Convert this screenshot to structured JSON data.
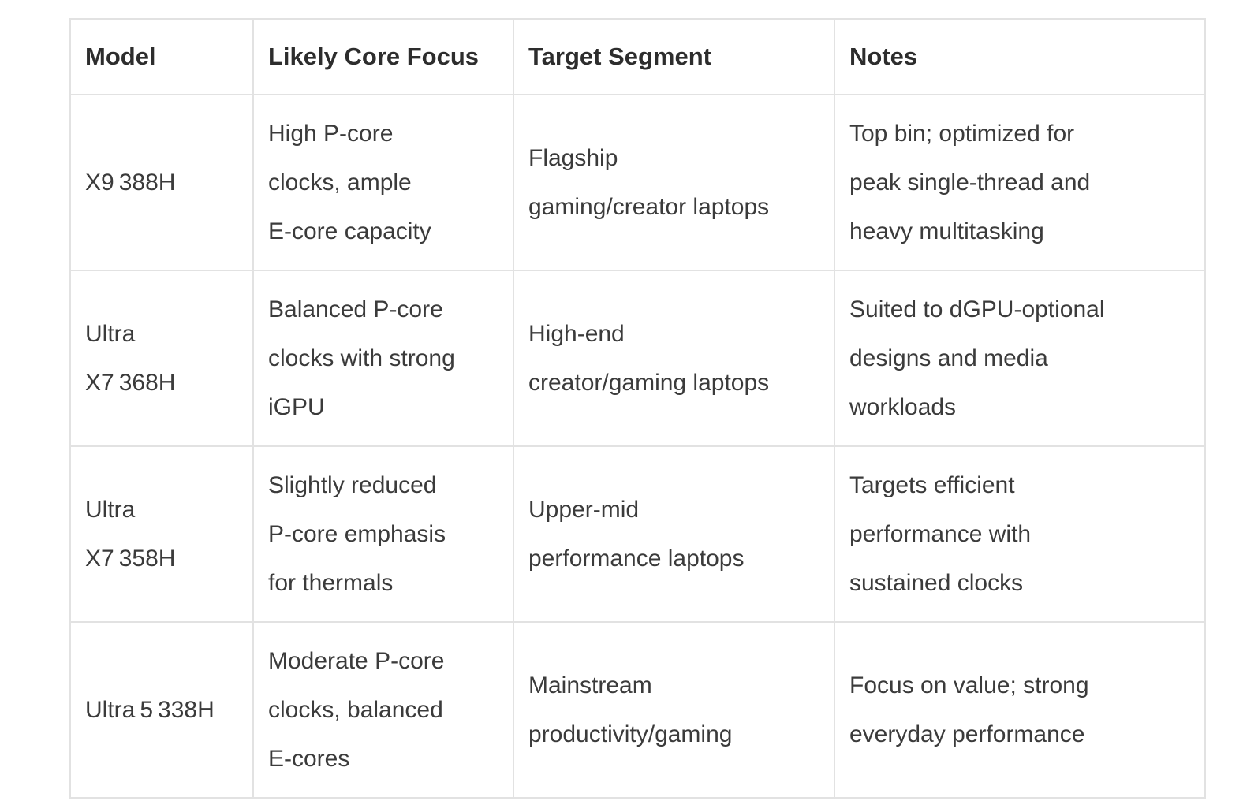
{
  "table": {
    "columns": [
      "Model",
      "Likely Core Focus",
      "Target Segment",
      "Notes"
    ],
    "rows": [
      {
        "cells": [
          "X9 388H",
          "High P-core\nclocks, ample\nE-core capacity",
          "Flagship\ngaming/creator laptops",
          "Top bin; optimized for\npeak single-thread and\nheavy multitasking"
        ]
      },
      {
        "cells": [
          "Ultra\nX7 368H",
          "Balanced P-core\nclocks with strong\niGPU",
          "High-end\ncreator/gaming laptops",
          "Suited to dGPU-optional\ndesigns and media\nworkloads"
        ]
      },
      {
        "cells": [
          "Ultra\nX7 358H",
          "Slightly reduced\nP-core emphasis\nfor thermals",
          "Upper-mid\nperformance laptops",
          "Targets efficient\nperformance with\nsustained clocks"
        ]
      },
      {
        "cells": [
          "Ultra 5 338H",
          "Moderate P-core\nclocks, balanced\nE-cores",
          "Mainstream\nproductivity/gaming",
          "Focus on value; strong\neveryday performance"
        ]
      }
    ]
  },
  "colors": {
    "border": "#e2e2e2",
    "header_text": "#2d2d2d",
    "body_text": "#3b3b3b",
    "background": "#ffffff"
  }
}
